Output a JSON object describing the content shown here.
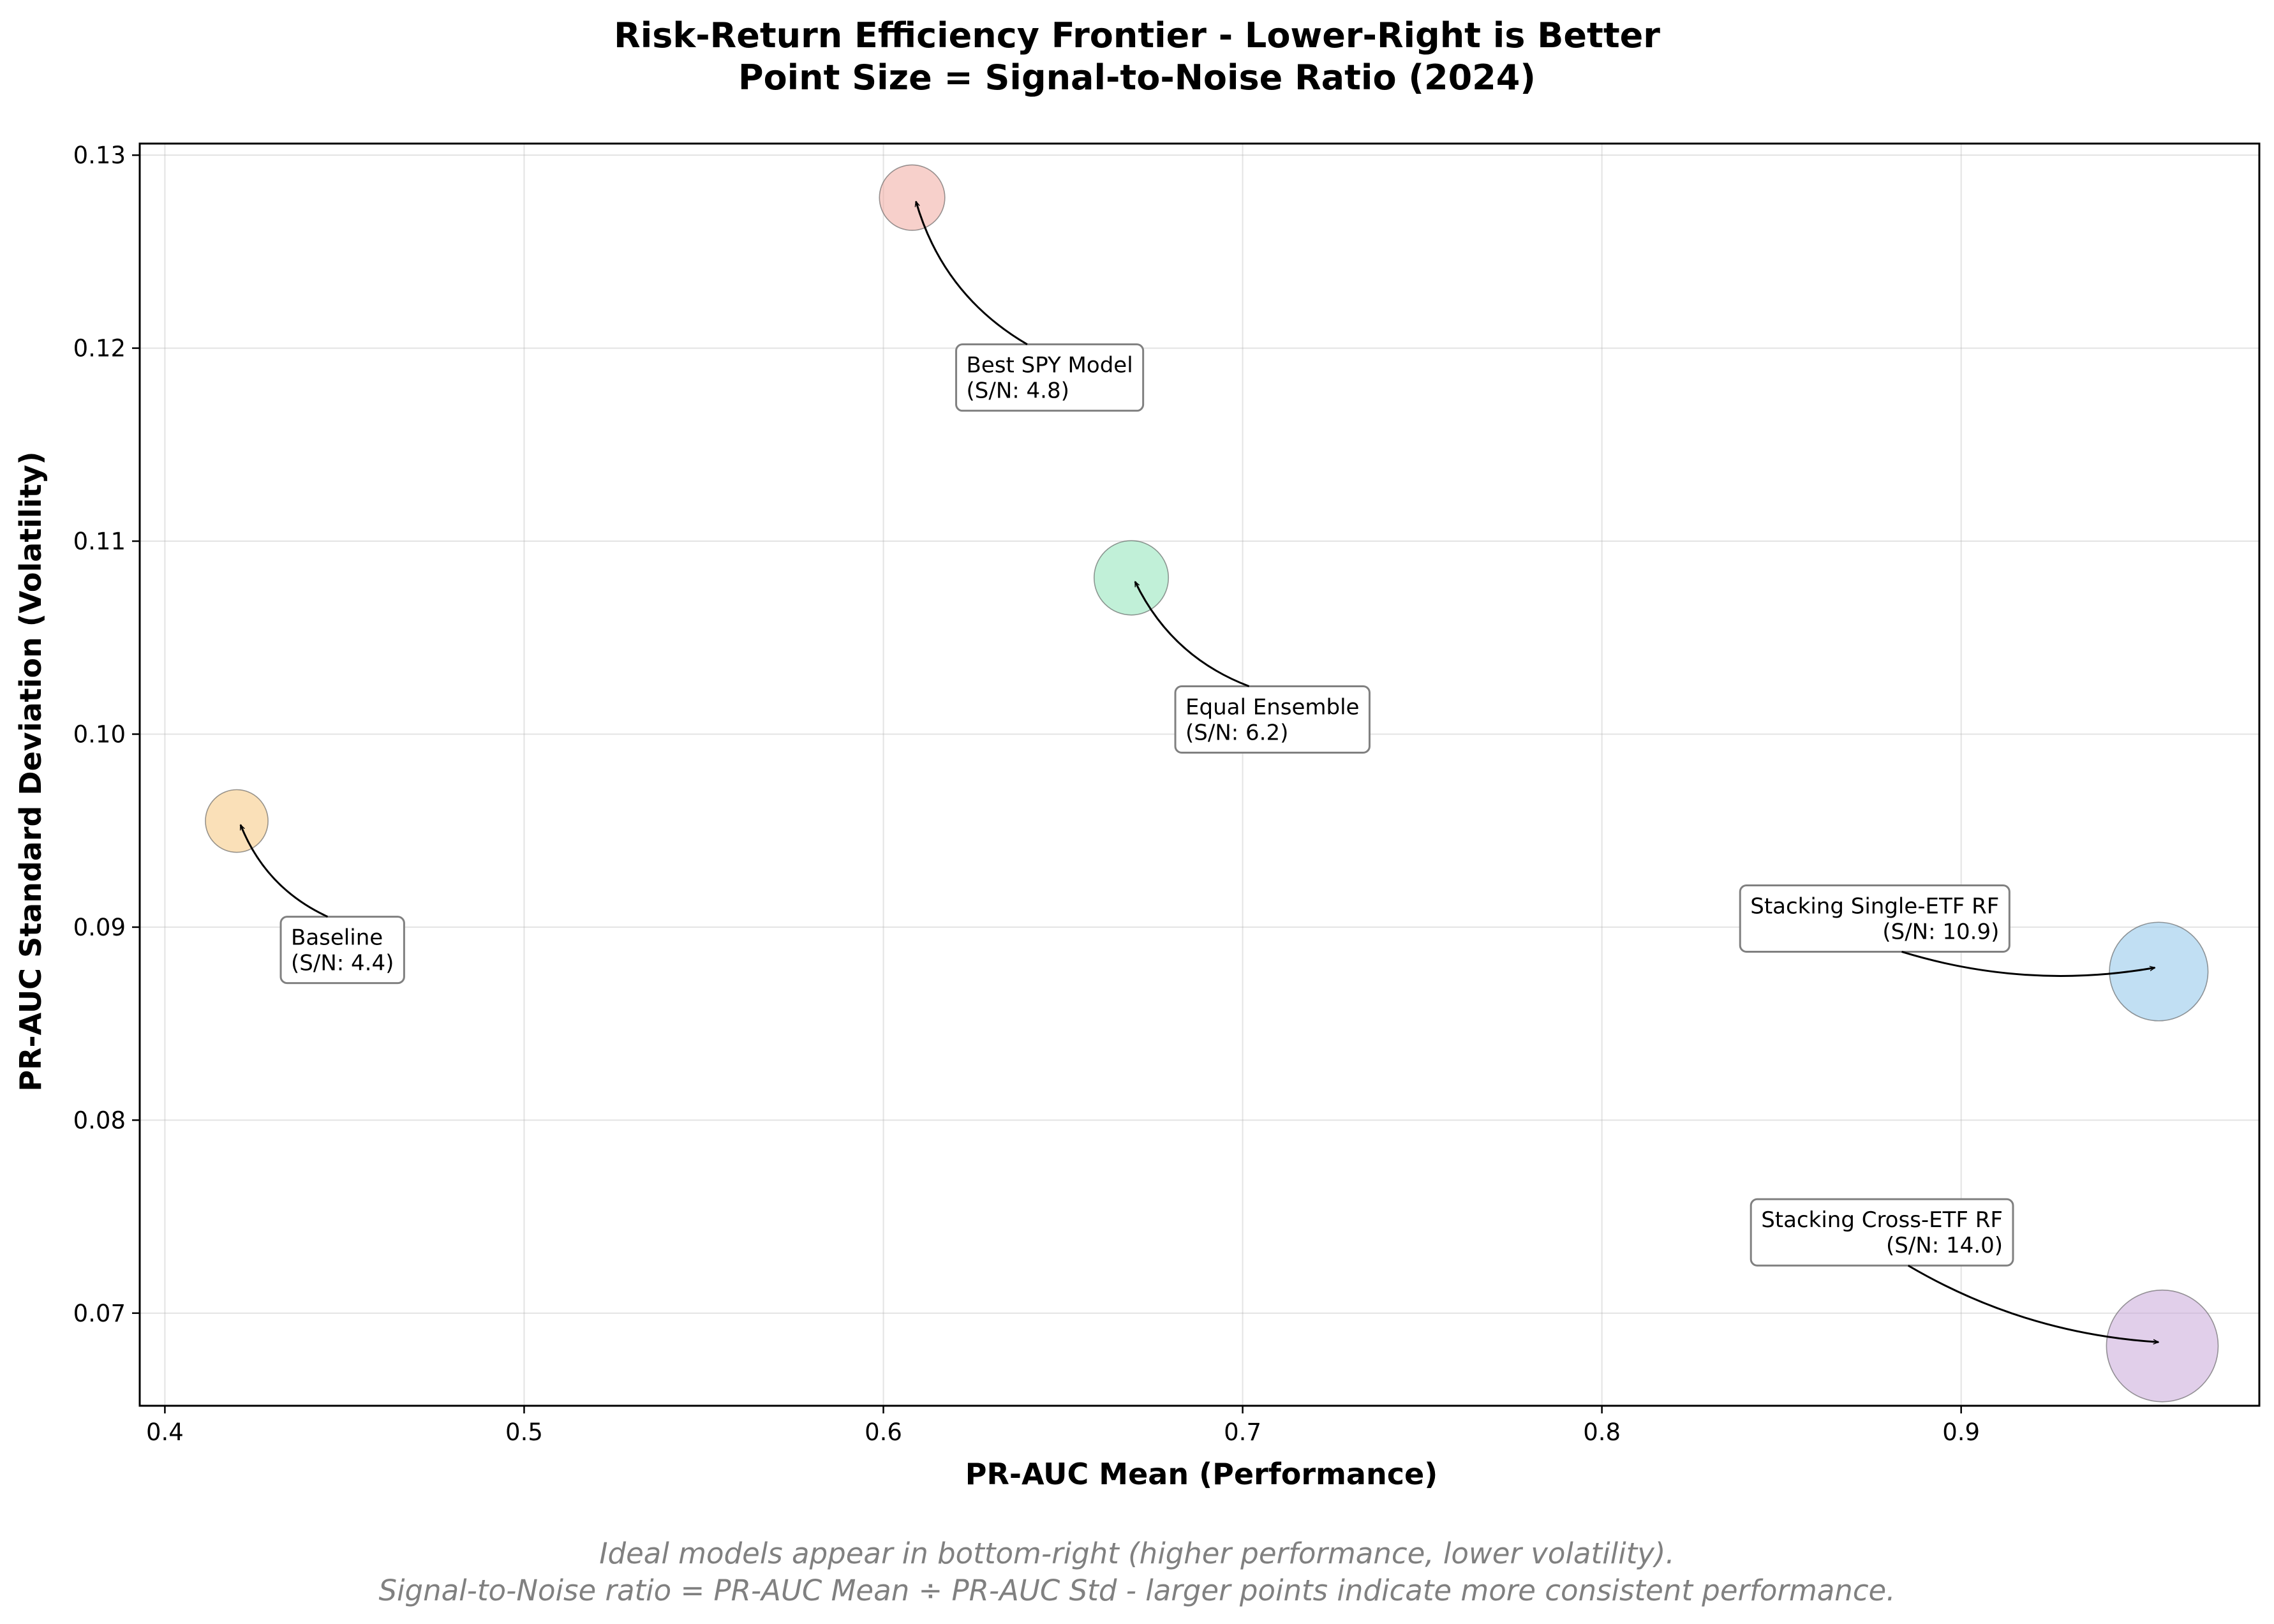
{
  "chart_data": {
    "type": "scatter",
    "title_lines": [
      "Risk-Return Efficiency Frontier - Lower-Right is Better",
      "Point Size = Signal-to-Noise Ratio (2024)"
    ],
    "xlabel": "PR-AUC Mean (Performance)",
    "ylabel": "PR-AUC Standard Deviation (Volatility)",
    "xlim": [
      0.393,
      0.983
    ],
    "ylim": [
      0.0652,
      0.1306
    ],
    "xticks": [
      0.4,
      0.5,
      0.6,
      0.7,
      0.8,
      0.9
    ],
    "xtick_labels": [
      "0.4",
      "0.5",
      "0.6",
      "0.7",
      "0.8",
      "0.9"
    ],
    "yticks": [
      0.07,
      0.08,
      0.09,
      0.1,
      0.11,
      0.12,
      0.13
    ],
    "ytick_labels": [
      "0.07",
      "0.08",
      "0.09",
      "0.10",
      "0.11",
      "0.12",
      "0.13"
    ],
    "grid": true,
    "points": [
      {
        "name": "Baseline",
        "sn_label": "(S/N: 4.4)",
        "x": 0.42,
        "y": 0.0955,
        "sn": 4.4,
        "color": "#f5c77e"
      },
      {
        "name": "Best SPY Model",
        "sn_label": "(S/N: 4.8)",
        "x": 0.608,
        "y": 0.1278,
        "sn": 4.8,
        "color": "#f1a9a0"
      },
      {
        "name": "Equal Ensemble",
        "sn_label": "(S/N: 6.2)",
        "x": 0.669,
        "y": 0.1081,
        "sn": 6.2,
        "color": "#8ee4b8"
      },
      {
        "name": "Stacking Single-ETF RF",
        "sn_label": "(S/N: 10.9)",
        "x": 0.955,
        "y": 0.0877,
        "sn": 10.9,
        "color": "#8ec4ea"
      },
      {
        "name": "Stacking Cross-ETF RF",
        "sn_label": "(S/N: 14.0)",
        "x": 0.956,
        "y": 0.0683,
        "sn": 14.0,
        "color": "#c9a7d9"
      }
    ],
    "footnote_lines": [
      "Ideal models appear in bottom-right (higher performance, lower volatility).",
      "Signal-to-Noise ratio = PR-AUC Mean ÷ PR-AUC Std - larger points indicate more consistent performance."
    ]
  }
}
